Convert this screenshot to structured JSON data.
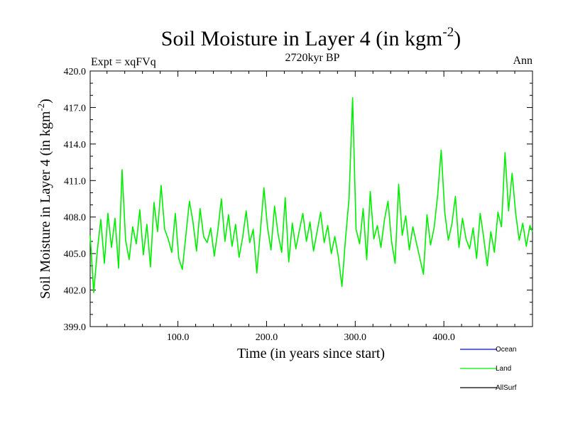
{
  "chart_data": {
    "type": "line",
    "title": "Soil Moisture in Layer 4 (in kgm",
    "title_sup": "-2",
    "title_close": ")",
    "subtitle": "2720kyr BP",
    "left_label": "Expt = xqFVq",
    "right_label": "Ann",
    "xlabel": "Time (in years since start)",
    "ylabel": "Soil Moisture in Layer 4 (in kgm",
    "ylabel_sup": "-2",
    "ylabel_close": ")",
    "xlim": [
      1,
      500
    ],
    "ylim": [
      399.0,
      420.0
    ],
    "xticks": [
      100,
      200,
      300,
      400
    ],
    "xtick_labels": [
      "100.0",
      "200.0",
      "300.0",
      "400.0"
    ],
    "yticks": [
      399,
      402,
      405,
      408,
      411,
      414,
      417,
      420
    ],
    "ytick_labels": [
      "399.0",
      "402.0",
      "405.0",
      "408.0",
      "411.0",
      "414.0",
      "417.0",
      "420.0"
    ],
    "legend": [
      {
        "name": "Ocean",
        "color": "#0000ff"
      },
      {
        "name": "Land",
        "color": "#00ee00"
      },
      {
        "name": "AllSurf",
        "color": "#000000"
      }
    ],
    "series": [
      {
        "name": "Land",
        "color": "#00ee00",
        "x": [
          1,
          5,
          9,
          13,
          17,
          21,
          25,
          29,
          33,
          37,
          41,
          45,
          49,
          53,
          57,
          61,
          65,
          69,
          73,
          77,
          81,
          85,
          89,
          93,
          97,
          101,
          105,
          109,
          113,
          117,
          121,
          125,
          129,
          133,
          137,
          141,
          145,
          149,
          153,
          157,
          161,
          165,
          169,
          173,
          177,
          181,
          185,
          189,
          193,
          197,
          201,
          205,
          209,
          213,
          217,
          221,
          225,
          229,
          233,
          237,
          241,
          245,
          249,
          253,
          257,
          261,
          265,
          269,
          273,
          277,
          281,
          285,
          289,
          293,
          297,
          301,
          305,
          309,
          313,
          317,
          321,
          325,
          329,
          333,
          337,
          341,
          345,
          349,
          353,
          357,
          361,
          365,
          369,
          373,
          377,
          381,
          385,
          389,
          393,
          397,
          401,
          405,
          409,
          413,
          417,
          421,
          425,
          429,
          433,
          437,
          441,
          445,
          449,
          453,
          457,
          461,
          465,
          469,
          473,
          477,
          481,
          485,
          489,
          493,
          497,
          500
        ],
        "values": [
          406.5,
          401.8,
          405.2,
          407.8,
          404.2,
          408.3,
          405.5,
          407.9,
          403.8,
          411.9,
          406.1,
          404.5,
          407.2,
          405.8,
          408.6,
          404.9,
          407.4,
          403.9,
          409.2,
          406.8,
          410.6,
          407.0,
          406.2,
          405.1,
          408.3,
          404.6,
          403.7,
          406.5,
          409.3,
          407.6,
          405.2,
          408.7,
          406.4,
          405.9,
          407.1,
          404.8,
          406.9,
          409.5,
          406.0,
          408.2,
          405.6,
          407.4,
          404.7,
          406.3,
          408.5,
          405.9,
          407.0,
          403.4,
          406.8,
          410.4,
          407.2,
          405.3,
          408.9,
          406.6,
          405.1,
          409.6,
          404.3,
          407.5,
          405.4,
          406.9,
          408.3,
          406.0,
          407.6,
          405.2,
          406.8,
          408.4,
          405.9,
          407.3,
          405.0,
          406.4,
          404.7,
          402.3,
          406.2,
          409.5,
          417.8,
          407.0,
          405.8,
          408.7,
          404.5,
          410.1,
          406.2,
          407.3,
          405.5,
          407.8,
          409.3,
          406.0,
          404.2,
          410.7,
          406.5,
          408.1,
          405.3,
          407.2,
          405.9,
          404.6,
          403.3,
          408.2,
          405.7,
          407.1,
          409.8,
          413.5,
          408.4,
          406.1,
          407.4,
          409.7,
          405.5,
          407.9,
          406.2,
          405.4,
          407.1,
          404.6,
          408.3,
          406.3,
          404.0,
          406.8,
          405.1,
          408.4,
          407.2,
          413.3,
          408.5,
          411.6,
          408.3,
          406.1,
          407.5,
          405.6,
          407.3,
          406.8
        ]
      }
    ]
  }
}
